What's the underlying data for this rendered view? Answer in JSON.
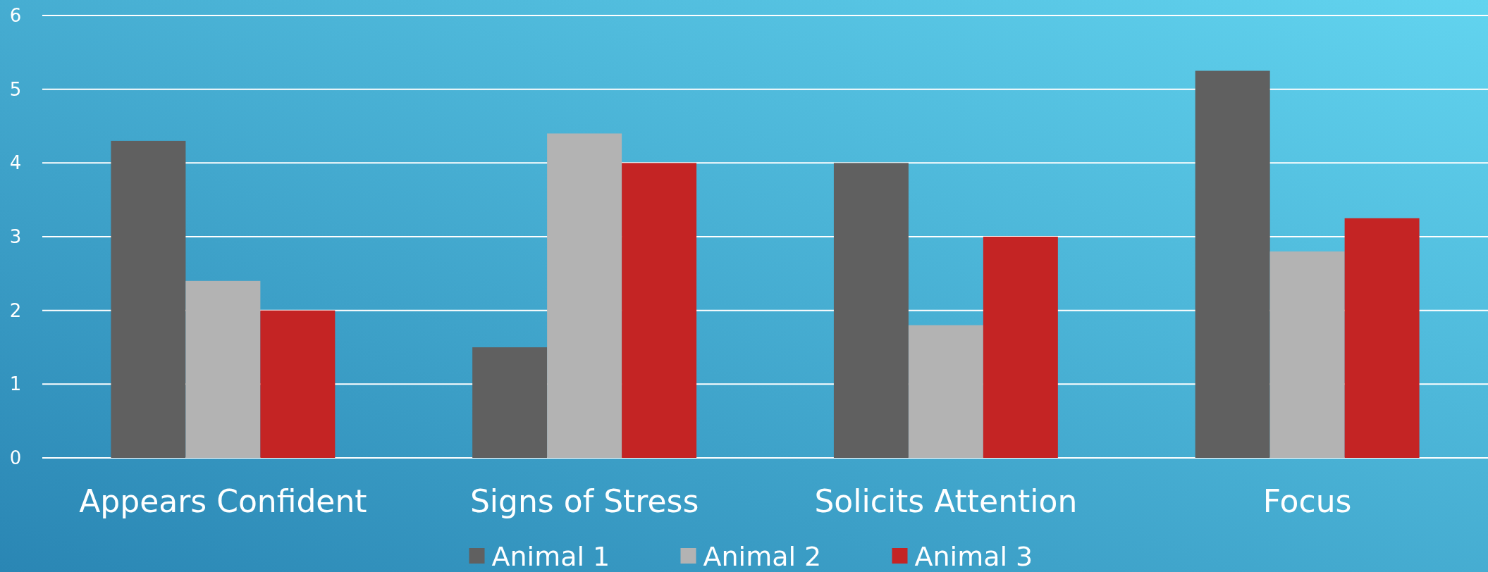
{
  "chart_data": {
    "type": "bar",
    "categories": [
      "Appears Confident",
      "Signs of Stress",
      "Solicits Attention",
      "Focus"
    ],
    "series": [
      {
        "name": "Animal 1",
        "color": "#606060",
        "values": [
          4.3,
          1.5,
          4.0,
          5.25
        ]
      },
      {
        "name": "Animal 2",
        "color": "#b3b3b3",
        "values": [
          2.4,
          4.4,
          1.8,
          2.8
        ]
      },
      {
        "name": "Animal 3",
        "color": "#c42424",
        "values": [
          2.0,
          4.0,
          3.0,
          3.25
        ]
      }
    ],
    "ylim": [
      0,
      6
    ],
    "yticks": [
      0,
      1,
      2,
      3,
      4,
      5,
      6
    ],
    "grid": "y",
    "legend": "bottom"
  }
}
